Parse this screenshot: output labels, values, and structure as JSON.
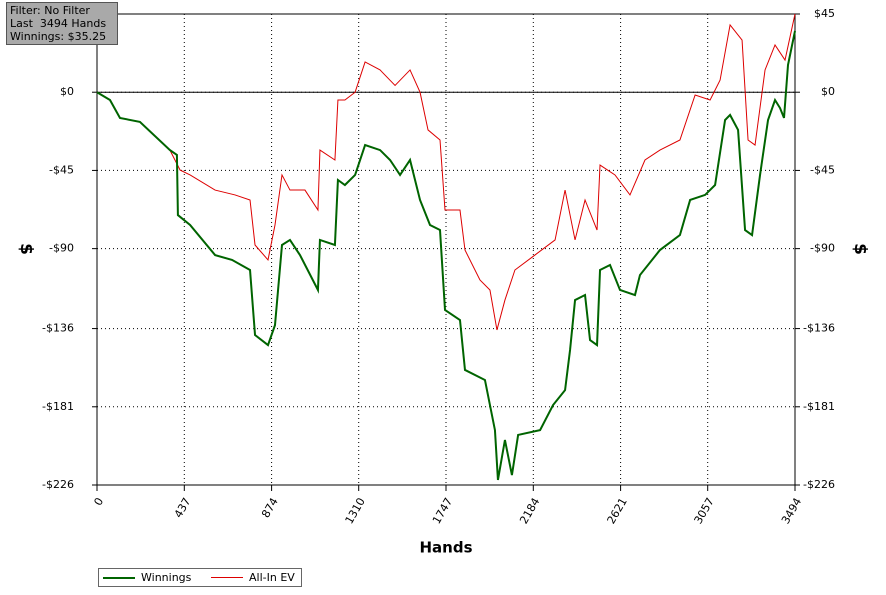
{
  "chart_data": {
    "type": "line",
    "x_label": "Hands",
    "y_label": "$",
    "info": [
      "Filter: No Filter",
      "Last  3494 Hands",
      "Winnings: $35.25"
    ],
    "xlim": [
      0,
      3494
    ],
    "xticks": [
      0,
      437,
      874,
      1310,
      1747,
      2184,
      2621,
      3057,
      3494
    ],
    "ylim": [
      -226,
      45
    ],
    "yticks": [
      {
        "value": 45,
        "label": "$45"
      },
      {
        "value": 0,
        "label": "$0"
      },
      {
        "value": -45,
        "label": "-$45"
      },
      {
        "value": -90,
        "label": "-$90"
      },
      {
        "value": -136,
        "label": "-$136"
      },
      {
        "value": -181,
        "label": "-$181"
      },
      {
        "value": -226,
        "label": "-$226"
      }
    ],
    "grid": true,
    "series": [
      {
        "name": "Winnings",
        "color": "#006400",
        "width": 2,
        "x": [
          0,
          65,
          115,
          215,
          365,
          400,
          405,
          466,
          591,
          676,
          766,
          791,
          856,
          891,
          926,
          966,
          1016,
          1106,
          1116,
          1191,
          1206,
          1241,
          1292,
          1342,
          1417,
          1467,
          1517,
          1567,
          1617,
          1667,
          1717,
          1742,
          1817,
          1842,
          1942,
          1992,
          2007,
          2042,
          2077,
          2108,
          2218,
          2283,
          2343,
          2368,
          2393,
          2443,
          2468,
          2503,
          2518,
          2568,
          2618,
          2693,
          2718,
          2818,
          2918,
          2969,
          3044,
          3094,
          3144,
          3169,
          3209,
          3244,
          3279,
          3319,
          3359,
          3394,
          3419,
          3439,
          3459,
          3494
        ],
        "values": [
          0,
          -4.5,
          -14.8,
          -17.1,
          -33.3,
          -36.1,
          -70.7,
          -76.4,
          -93.7,
          -96.5,
          -102.3,
          -139.7,
          -145.5,
          -134,
          -87.9,
          -85.0,
          -93.7,
          -113.8,
          -85.0,
          -87.9,
          -50.5,
          -53.4,
          -47.6,
          -30.4,
          -33.3,
          -39.0,
          -47.6,
          -39.0,
          -62.0,
          -76.4,
          -79.3,
          -125.3,
          -131.1,
          -159.8,
          -165.6,
          -194.4,
          -223.1,
          -200.1,
          -220.3,
          -197.2,
          -194.4,
          -180.0,
          -171.4,
          -148.3,
          -119.6,
          -116.7,
          -142.6,
          -145.5,
          -102.3,
          -99.4,
          -113.8,
          -116.7,
          -105.2,
          -90.8,
          -82.2,
          -62.0,
          -59.1,
          -53.4,
          -16.0,
          -13.1,
          -21.7,
          -79.3,
          -82.2,
          -47.6,
          -16.0,
          -4.5,
          -9.1,
          -14.8,
          15.7,
          35.25
        ]
      },
      {
        "name": "All-In EV",
        "color": "#dd0000",
        "width": 1,
        "x": [
          0,
          65,
          115,
          215,
          365,
          416,
          466,
          591,
          691,
          766,
          791,
          856,
          891,
          926,
          966,
          1041,
          1106,
          1116,
          1191,
          1206,
          1241,
          1292,
          1342,
          1417,
          1492,
          1567,
          1617,
          1657,
          1717,
          1742,
          1817,
          1842,
          1917,
          1967,
          2002,
          2042,
          2092,
          2192,
          2293,
          2343,
          2393,
          2443,
          2503,
          2518,
          2593,
          2668,
          2743,
          2818,
          2918,
          2994,
          3069,
          3119,
          3169,
          3229,
          3259,
          3294,
          3344,
          3394,
          3444,
          3494
        ],
        "values": [
          0,
          -4.5,
          -14.8,
          -17.1,
          -33.3,
          -44.8,
          -47.6,
          -56.3,
          -59.1,
          -62.0,
          -87.9,
          -96.5,
          -76.4,
          -47.6,
          -56.3,
          -56.3,
          -67.8,
          -33.3,
          -39.0,
          -4.5,
          -4.5,
          0,
          17.4,
          12.8,
          3.9,
          12.8,
          0,
          -21.7,
          -27.5,
          -67.8,
          -67.8,
          -90.8,
          -108.0,
          -113.8,
          -136.8,
          -119.6,
          -102.3,
          -93.7,
          -85.0,
          -56.3,
          -85.0,
          -62.0,
          -79.3,
          -41.9,
          -47.6,
          -59.1,
          -39.0,
          -33.3,
          -27.5,
          -1.6,
          -4.5,
          7.0,
          38.7,
          30.0,
          -27.5,
          -30.4,
          12.8,
          27.2,
          18.5,
          45
        ]
      }
    ]
  }
}
